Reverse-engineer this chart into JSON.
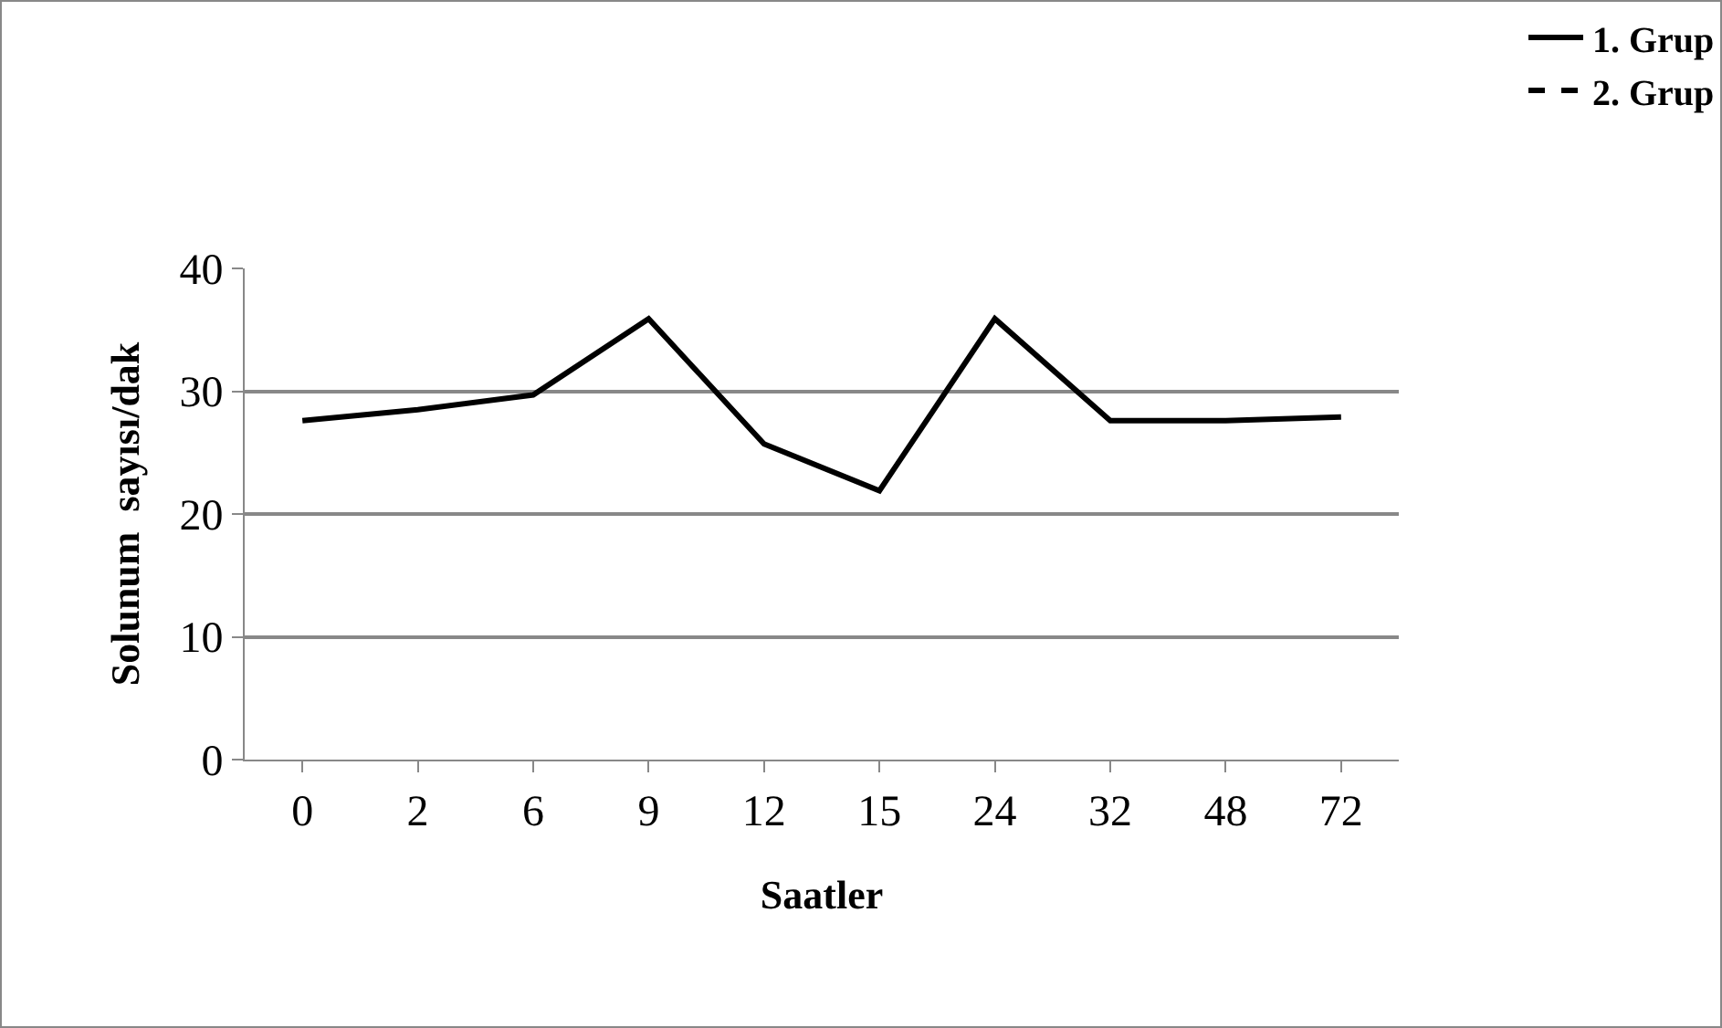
{
  "chart_data": {
    "type": "line",
    "xlabel": "Saatler",
    "ylabel": "Solunum  sayısı/dak",
    "categories": [
      "0",
      "2",
      "6",
      "9",
      "12",
      "15",
      "24",
      "32",
      "48",
      "72"
    ],
    "series": [
      {
        "name": "1. Grup",
        "color": "#000000",
        "line_style": "solid",
        "values": [
          27.6,
          28.5,
          29.7,
          35.9,
          25.7,
          21.9,
          35.9,
          27.6,
          27.6,
          27.9
        ]
      },
      {
        "name": "2. Grup",
        "color": "#000000",
        "line_style": "dashed",
        "values": [
          null,
          null,
          null,
          null,
          null,
          null,
          null,
          null,
          null,
          null
        ]
      }
    ],
    "ylim": [
      0,
      40
    ],
    "yticks": [
      0,
      10,
      20,
      30,
      40
    ],
    "grid": "y",
    "legend": "top right",
    "marker": "none"
  }
}
